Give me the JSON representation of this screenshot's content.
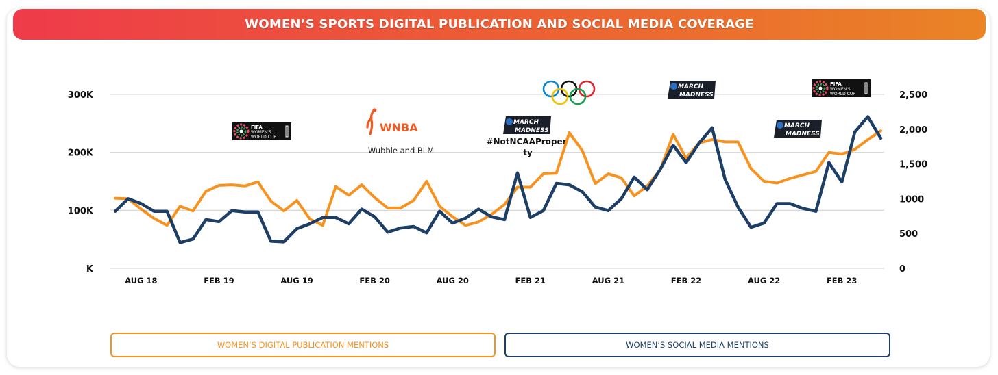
{
  "header": {
    "title": "WOMEN’S SPORTS DIGITAL PUBLICATION AND SOCIAL MEDIA COVERAGE",
    "gradient_start": "#ee3b4a",
    "gradient_end": "#ea8426"
  },
  "legend": {
    "publication_label": "WOMEN’S DIGITAL PUBLICATION MENTIONS",
    "social_label": "WOMEN’S SOCIAL MEDIA MENTIONS",
    "publication_color": "#f7921e",
    "social_color": "#1d3f66"
  },
  "axes": {
    "left_ticks": [
      "K",
      "100K",
      "200K",
      "300K"
    ],
    "right_ticks": [
      "0",
      "500",
      "1000",
      "1,500",
      "2,000",
      "2,500"
    ],
    "x_ticks": [
      "AUG 18",
      "FEB 19",
      "AUG 19",
      "FEB 20",
      "AUG 20",
      "FEB 21",
      "AUG 21",
      "FEB 22",
      "AUG 22",
      "FEB 23"
    ]
  },
  "annotations": {
    "fifa_logo": {
      "line1": "FIFA",
      "line2": "WOMEN'S",
      "line3": "WORLD CUP"
    },
    "wnba_logo": "WNBA",
    "wnba_caption": "Wubble and BLM",
    "march_madness_logo": {
      "line1": "MARCH",
      "line2": "MADNESS"
    },
    "ncaa_caption_1": "#NotNCAAProper",
    "ncaa_caption_2": "ty",
    "olympics": "Olympic rings"
  },
  "chart_data": {
    "type": "line",
    "title": "WOMEN’S SPORTS DIGITAL PUBLICATION AND SOCIAL MEDIA COVERAGE",
    "xlabel": "",
    "ylabel_left": "Digital publication mentions",
    "ylabel_right": "Social media mentions",
    "ylim_left": [
      0,
      300000
    ],
    "ylim_right": [
      0,
      2500
    ],
    "grid": true,
    "legend_position": "bottom",
    "x_tick_labels": [
      "AUG 18",
      "FEB 19",
      "AUG 19",
      "FEB 20",
      "AUG 20",
      "FEB 21",
      "AUG 21",
      "FEB 22",
      "AUG 22",
      "FEB 23"
    ],
    "x": [
      "Jun 18",
      "Jul 18",
      "Aug 18",
      "Sep 18",
      "Oct 18",
      "Nov 18",
      "Dec 18",
      "Jan 19",
      "Feb 19",
      "Mar 19",
      "Apr 19",
      "May 19",
      "Jun 19",
      "Jul 19",
      "Aug 19",
      "Sep 19",
      "Oct 19",
      "Nov 19",
      "Dec 19",
      "Jan 20",
      "Feb 20",
      "Mar 20",
      "Apr 20",
      "May 20",
      "Jun 20",
      "Jul 20",
      "Aug 20",
      "Sep 20",
      "Oct 20",
      "Nov 20",
      "Dec 20",
      "Jan 21",
      "Feb 21",
      "Mar 21",
      "Apr 21",
      "May 21",
      "Jun 21",
      "Jul 21",
      "Aug 21",
      "Sep 21",
      "Oct 21",
      "Nov 21",
      "Dec 21",
      "Jan 22",
      "Feb 22",
      "Mar 22",
      "Apr 22",
      "May 22",
      "Jun 22",
      "Jul 22",
      "Aug 22",
      "Sep 22",
      "Oct 22",
      "Nov 22",
      "Dec 22",
      "Jan 23",
      "Feb 23",
      "Mar 23",
      "Apr 23",
      "May 23"
    ],
    "series": [
      {
        "name": "WOMEN’S DIGITAL PUBLICATION MENTIONS",
        "axis": "left",
        "color": "#f7921e",
        "values": [
          121000,
          120000,
          102000,
          86000,
          74000,
          107000,
          99000,
          133000,
          143000,
          144000,
          142000,
          149000,
          116000,
          99000,
          117000,
          85000,
          74000,
          141000,
          126000,
          144000,
          122000,
          104000,
          104000,
          117000,
          150000,
          107000,
          89000,
          74000,
          80000,
          93000,
          110000,
          140000,
          140000,
          163000,
          164000,
          234000,
          203000,
          146000,
          163000,
          156000,
          125000,
          142000,
          170000,
          231000,
          190000,
          216000,
          222000,
          218000,
          218000,
          172000,
          150000,
          147000,
          155000,
          161000,
          167000,
          200000,
          197000,
          205000,
          222000,
          237000
        ]
      },
      {
        "name": "WOMEN’S SOCIAL MEDIA MENTIONS",
        "axis": "right",
        "color": "#1d3f66",
        "values": [
          820,
          1000,
          930,
          820,
          820,
          370,
          420,
          700,
          670,
          830,
          810,
          810,
          390,
          380,
          570,
          640,
          730,
          730,
          640,
          850,
          740,
          520,
          580,
          600,
          510,
          820,
          650,
          720,
          850,
          740,
          700,
          1370,
          730,
          830,
          1220,
          1200,
          1100,
          880,
          830,
          1000,
          1310,
          1130,
          1420,
          1770,
          1520,
          1800,
          2020,
          1280,
          880,
          590,
          650,
          930,
          930,
          860,
          820,
          1520,
          1240,
          1960,
          2180,
          1870
        ]
      }
    ]
  }
}
